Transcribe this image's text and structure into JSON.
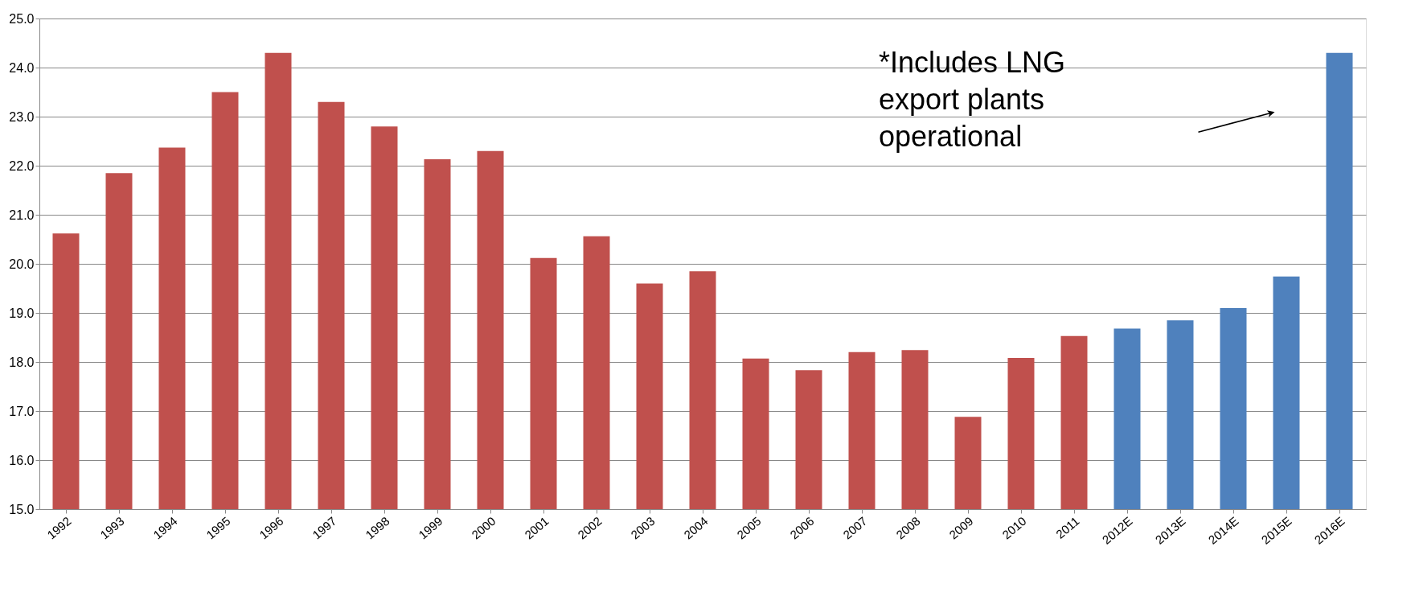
{
  "chart_data": {
    "type": "bar",
    "categories": [
      "1992",
      "1993",
      "1994",
      "1995",
      "1996",
      "1997",
      "1998",
      "1999",
      "2000",
      "2001",
      "2002",
      "2003",
      "2004",
      "2005",
      "2006",
      "2007",
      "2008",
      "2009",
      "2010",
      "2011",
      "2012E",
      "2013E",
      "2014E",
      "2015E",
      "2016E"
    ],
    "values": [
      20.62,
      21.85,
      22.37,
      23.5,
      24.3,
      23.3,
      22.8,
      22.13,
      22.3,
      20.12,
      20.56,
      19.6,
      19.85,
      18.07,
      17.83,
      18.2,
      18.24,
      16.88,
      18.08,
      18.53,
      18.68,
      18.85,
      19.1,
      19.74,
      24.3
    ],
    "colors": [
      "#c0504d",
      "#c0504d",
      "#c0504d",
      "#c0504d",
      "#c0504d",
      "#c0504d",
      "#c0504d",
      "#c0504d",
      "#c0504d",
      "#c0504d",
      "#c0504d",
      "#c0504d",
      "#c0504d",
      "#c0504d",
      "#c0504d",
      "#c0504d",
      "#c0504d",
      "#c0504d",
      "#c0504d",
      "#c0504d",
      "#4f81bd",
      "#4f81bd",
      "#4f81bd",
      "#4f81bd",
      "#4f81bd"
    ],
    "ylim": [
      15.0,
      25.0
    ],
    "yticks": [
      {
        "value": 15,
        "label": "15.0"
      },
      {
        "value": 16,
        "label": "16.0"
      },
      {
        "value": 17,
        "label": "17.0"
      },
      {
        "value": 18,
        "label": "18.0"
      },
      {
        "value": 19,
        "label": "19.0"
      },
      {
        "value": 20,
        "label": "20.0"
      },
      {
        "value": 21,
        "label": "21.0"
      },
      {
        "value": 22,
        "label": "22.0"
      },
      {
        "value": 23,
        "label": "23.0"
      },
      {
        "value": 24,
        "label": "24.0"
      },
      {
        "value": 25,
        "label": "25.0"
      }
    ],
    "grid": "y",
    "annotations": [
      "*Includes LNG\nexport plants\noperational"
    ]
  }
}
